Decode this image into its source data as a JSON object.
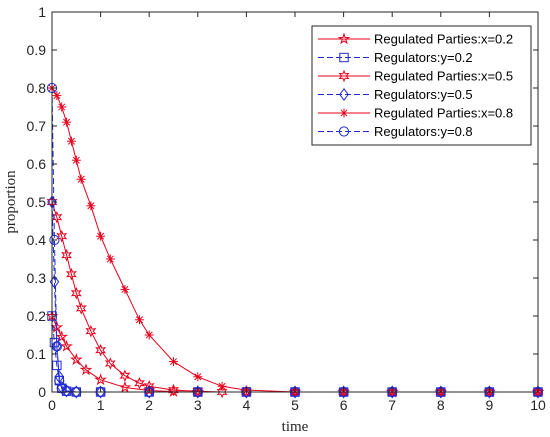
{
  "chart_data": {
    "type": "line",
    "xlabel": "time",
    "ylabel": "proportion",
    "xlim": [
      0,
      10
    ],
    "ylim": [
      0,
      1
    ],
    "x_ticks": [
      "0",
      "1",
      "2",
      "3",
      "4",
      "5",
      "6",
      "7",
      "8",
      "9",
      "10"
    ],
    "y_ticks": [
      "0",
      "0.1",
      "0.2",
      "0.3",
      "0.4",
      "0.5",
      "0.6",
      "0.7",
      "0.8",
      "0.9",
      "1"
    ],
    "grid": false,
    "legend_position": "top-right",
    "series": [
      {
        "name": "Regulated Parties:x=0.2",
        "color": "#e8001c",
        "linestyle": "solid",
        "marker": "star",
        "x": [
          0,
          0.1,
          0.2,
          0.3,
          0.5,
          0.7,
          1.0,
          1.5,
          2.0,
          2.5,
          3.0,
          4.0,
          5.0,
          6.0,
          7.0,
          8.0,
          9.0,
          10.0
        ],
        "y": [
          0.2,
          0.17,
          0.145,
          0.12,
          0.085,
          0.058,
          0.032,
          0.012,
          0.004,
          0.001,
          0,
          0,
          0,
          0,
          0,
          0,
          0,
          0
        ]
      },
      {
        "name": "Regulators:y=0.2",
        "color": "#1f2bd1",
        "linestyle": "dashed",
        "marker": "square",
        "x": [
          0,
          0.05,
          0.1,
          0.15,
          0.2,
          0.3,
          0.5,
          1.0,
          2.0,
          3.0,
          4.0,
          5.0,
          6.0,
          7.0,
          8.0,
          9.0,
          10.0
        ],
        "y": [
          0.2,
          0.13,
          0.07,
          0.03,
          0.01,
          0.002,
          0,
          0,
          0,
          0,
          0,
          0,
          0,
          0,
          0,
          0,
          0
        ]
      },
      {
        "name": "Regulated Parties:x=0.5",
        "color": "#e8001c",
        "linestyle": "solid",
        "marker": "hexagram",
        "x": [
          0,
          0.1,
          0.2,
          0.3,
          0.4,
          0.5,
          0.6,
          0.8,
          1.0,
          1.2,
          1.5,
          1.8,
          2.0,
          2.5,
          3.0,
          3.5,
          4.0,
          5.0,
          6.0,
          7.0,
          8.0,
          9.0,
          10.0
        ],
        "y": [
          0.5,
          0.46,
          0.41,
          0.36,
          0.31,
          0.26,
          0.22,
          0.16,
          0.11,
          0.075,
          0.043,
          0.023,
          0.015,
          0.005,
          0.002,
          0,
          0,
          0,
          0,
          0,
          0,
          0,
          0
        ]
      },
      {
        "name": "Regulators:y=0.5",
        "color": "#1f2bd1",
        "linestyle": "dashed",
        "marker": "diamond",
        "x": [
          0,
          0.05,
          0.1,
          0.15,
          0.2,
          0.3,
          0.5,
          1.0,
          2.0,
          3.0,
          4.0,
          5.0,
          6.0,
          7.0,
          8.0,
          9.0,
          10.0
        ],
        "y": [
          0.5,
          0.29,
          0.12,
          0.04,
          0.012,
          0.003,
          0,
          0,
          0,
          0,
          0,
          0,
          0,
          0,
          0,
          0,
          0
        ]
      },
      {
        "name": "Regulated Parties:x=0.8",
        "color": "#e8001c",
        "linestyle": "solid",
        "marker": "asterisk",
        "x": [
          0,
          0.1,
          0.2,
          0.3,
          0.4,
          0.5,
          0.6,
          0.8,
          1.0,
          1.2,
          1.5,
          1.8,
          2.0,
          2.5,
          3.0,
          3.5,
          4.0,
          5.0,
          6.0,
          7.0,
          8.0,
          9.0,
          10.0
        ],
        "y": [
          0.8,
          0.78,
          0.75,
          0.71,
          0.66,
          0.61,
          0.56,
          0.49,
          0.41,
          0.35,
          0.27,
          0.19,
          0.15,
          0.08,
          0.04,
          0.015,
          0.005,
          0,
          0,
          0,
          0,
          0,
          0
        ]
      },
      {
        "name": "Regulators:y=0.8",
        "color": "#1f2bd1",
        "linestyle": "dashed",
        "marker": "circle",
        "x": [
          0,
          0.05,
          0.1,
          0.15,
          0.2,
          0.3,
          0.5,
          1.0,
          2.0,
          3.0,
          4.0,
          5.0,
          6.0,
          7.0,
          8.0,
          9.0,
          10.0
        ],
        "y": [
          0.8,
          0.4,
          0.12,
          0.03,
          0.01,
          0.003,
          0,
          0,
          0,
          0,
          0,
          0,
          0,
          0,
          0,
          0,
          0
        ]
      }
    ]
  }
}
